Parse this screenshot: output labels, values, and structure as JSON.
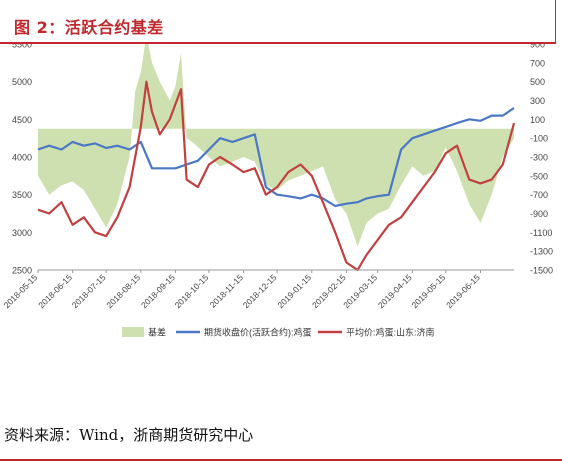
{
  "header": {
    "title": "图 2：活跃合约基差"
  },
  "footer": {
    "source": "资料来源：Wind，浙商期货研究中心"
  },
  "colors": {
    "title": "#c0282d",
    "basis_fill": "#cfe0b0",
    "futures_line": "#4a78c4",
    "spot_line": "#c04040"
  },
  "chart_data": {
    "type": "line",
    "x_ticks": [
      "2018-05-15",
      "2018-06-15",
      "2018-07-15",
      "2018-08-15",
      "2018-09-15",
      "2018-10-15",
      "2018-11-15",
      "2018-12-15",
      "2019-01-15",
      "2019-02-15",
      "2019-03-15",
      "2019-04-15",
      "2019-05-15",
      "2019-06-15"
    ],
    "y_left": {
      "ticks": [
        "2500",
        "3000",
        "3500",
        "4000",
        "4500",
        "5000",
        "5500"
      ],
      "range": [
        2500,
        5500
      ]
    },
    "y_right": {
      "ticks": [
        "-1500",
        "-1300",
        "-1100",
        "-900",
        "-700",
        "-500",
        "-300",
        "-100",
        "100",
        "300",
        "500",
        "700",
        "900"
      ],
      "range": [
        -1500,
        900
      ],
      "top_tick_clipped": true
    },
    "legend": {
      "position": "bottom",
      "items": [
        "基差",
        "期货收盘价(活跃合约):鸡蛋",
        "平均价:鸡蛋:山东:济南"
      ]
    },
    "x_range": [
      "2018-05-15",
      "2019-07-15"
    ],
    "series": [
      {
        "name": "基差",
        "kind": "area",
        "axis": "right",
        "x": [
          "2018-05-15",
          "2018-05-25",
          "2018-06-05",
          "2018-06-15",
          "2018-06-25",
          "2018-07-05",
          "2018-07-15",
          "2018-07-25",
          "2018-08-05",
          "2018-08-10",
          "2018-08-15",
          "2018-08-20",
          "2018-08-25",
          "2018-09-01",
          "2018-09-10",
          "2018-09-15",
          "2018-09-20",
          "2018-09-25",
          "2018-10-01",
          "2018-10-15",
          "2018-10-25",
          "2018-11-05",
          "2018-11-15",
          "2018-11-25",
          "2018-12-05",
          "2018-12-15",
          "2018-12-25",
          "2019-01-05",
          "2019-01-15",
          "2019-01-25",
          "2019-02-05",
          "2019-02-15",
          "2019-02-25",
          "2019-03-05",
          "2019-03-15",
          "2019-03-25",
          "2019-04-05",
          "2019-04-15",
          "2019-04-25",
          "2019-05-05",
          "2019-05-15",
          "2019-05-25",
          "2019-06-05",
          "2019-06-15",
          "2019-06-25",
          "2019-07-05",
          "2019-07-15"
        ],
        "values": [
          -500,
          -700,
          -600,
          -560,
          -650,
          -850,
          -1050,
          -800,
          -300,
          400,
          600,
          1000,
          700,
          500,
          300,
          450,
          800,
          -100,
          -150,
          -300,
          -400,
          -350,
          -300,
          -350,
          -600,
          -650,
          -550,
          -500,
          -450,
          -400,
          -750,
          -900,
          -1250,
          -1000,
          -900,
          -850,
          -600,
          -400,
          -500,
          -450,
          -200,
          -450,
          -800,
          -1000,
          -700,
          -300,
          -100
        ]
      },
      {
        "name": "期货收盘价(活跃合约):鸡蛋",
        "kind": "line",
        "axis": "left",
        "x": [
          "2018-05-15",
          "2018-05-25",
          "2018-06-05",
          "2018-06-15",
          "2018-06-25",
          "2018-07-05",
          "2018-07-15",
          "2018-07-25",
          "2018-08-05",
          "2018-08-15",
          "2018-08-25",
          "2018-09-05",
          "2018-09-15",
          "2018-09-25",
          "2018-10-05",
          "2018-10-15",
          "2018-10-25",
          "2018-11-05",
          "2018-11-15",
          "2018-11-25",
          "2018-12-05",
          "2018-12-15",
          "2018-12-25",
          "2019-01-05",
          "2019-01-15",
          "2019-01-25",
          "2019-02-05",
          "2019-02-15",
          "2019-02-25",
          "2019-03-05",
          "2019-03-15",
          "2019-03-25",
          "2019-04-05",
          "2019-04-15",
          "2019-04-25",
          "2019-05-05",
          "2019-05-15",
          "2019-05-25",
          "2019-06-05",
          "2019-06-15",
          "2019-06-25",
          "2019-07-05",
          "2019-07-15"
        ],
        "values": [
          4100,
          4150,
          4100,
          4200,
          4150,
          4180,
          4120,
          4150,
          4100,
          4200,
          3850,
          3850,
          3850,
          3900,
          3950,
          4100,
          4250,
          4200,
          4250,
          4300,
          3600,
          3500,
          3480,
          3450,
          3500,
          3450,
          3350,
          3380,
          3400,
          3450,
          3480,
          3500,
          4100,
          4250,
          4300,
          4350,
          4400,
          4450,
          4500,
          4480,
          4550,
          4550,
          4650
        ]
      },
      {
        "name": "平均价:鸡蛋:山东:济南",
        "kind": "line",
        "axis": "left",
        "x": [
          "2018-05-15",
          "2018-05-25",
          "2018-06-05",
          "2018-06-15",
          "2018-06-25",
          "2018-07-05",
          "2018-07-15",
          "2018-07-25",
          "2018-08-05",
          "2018-08-15",
          "2018-08-20",
          "2018-08-25",
          "2018-09-01",
          "2018-09-10",
          "2018-09-15",
          "2018-09-20",
          "2018-09-25",
          "2018-10-05",
          "2018-10-15",
          "2018-10-25",
          "2018-11-05",
          "2018-11-15",
          "2018-11-25",
          "2018-12-05",
          "2018-12-15",
          "2018-12-25",
          "2019-01-05",
          "2019-01-15",
          "2019-01-25",
          "2019-02-05",
          "2019-02-15",
          "2019-02-25",
          "2019-03-05",
          "2019-03-15",
          "2019-03-25",
          "2019-04-05",
          "2019-04-15",
          "2019-04-25",
          "2019-05-05",
          "2019-05-15",
          "2019-05-25",
          "2019-06-05",
          "2019-06-15",
          "2019-06-25",
          "2019-07-05",
          "2019-07-15"
        ],
        "values": [
          3300,
          3250,
          3400,
          3100,
          3200,
          3000,
          2950,
          3200,
          3600,
          4400,
          5000,
          4600,
          4300,
          4500,
          4700,
          4900,
          3700,
          3600,
          3900,
          4000,
          3900,
          3800,
          3850,
          3500,
          3600,
          3800,
          3900,
          3750,
          3400,
          3000,
          2600,
          2500,
          2700,
          2900,
          3100,
          3200,
          3400,
          3600,
          3800,
          4050,
          4150,
          3700,
          3650,
          3700,
          3900,
          4450
        ]
      }
    ]
  }
}
